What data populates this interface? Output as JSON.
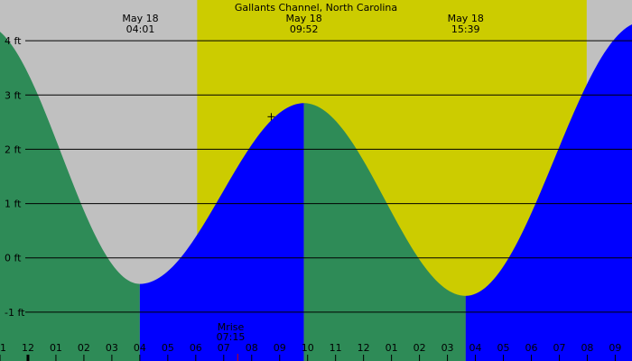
{
  "chart_data": {
    "type": "area",
    "title": "Gallants Channel, North Carolina",
    "colors": {
      "background": "#c0c0c0",
      "daylight": "#cccc00",
      "falling": "#2e8b57",
      "rising": "#0000ff",
      "gridline": "#000000",
      "moonrise_tick": "#cc0000"
    },
    "x_range_hours": [
      -1,
      21.6
    ],
    "ylim": [
      -1.9,
      4.75
    ],
    "yticks": [
      {
        "value": 4,
        "label": "4 ft"
      },
      {
        "value": 3,
        "label": "3 ft"
      },
      {
        "value": 2,
        "label": "2 ft"
      },
      {
        "value": 1,
        "label": "1 ft"
      },
      {
        "value": 0,
        "label": "0 ft"
      },
      {
        "value": -1,
        "label": "-1 ft"
      }
    ],
    "xticks": [
      {
        "hour": -1,
        "label": "11"
      },
      {
        "hour": 0,
        "label": "12"
      },
      {
        "hour": 1,
        "label": "01"
      },
      {
        "hour": 2,
        "label": "02"
      },
      {
        "hour": 3,
        "label": "03"
      },
      {
        "hour": 4,
        "label": "04"
      },
      {
        "hour": 5,
        "label": "05"
      },
      {
        "hour": 6,
        "label": "06"
      },
      {
        "hour": 7,
        "label": "07"
      },
      {
        "hour": 8,
        "label": "08"
      },
      {
        "hour": 9,
        "label": "09"
      },
      {
        "hour": 10,
        "label": "10"
      },
      {
        "hour": 11,
        "label": "11"
      },
      {
        "hour": 12,
        "label": "12"
      },
      {
        "hour": 13,
        "label": "01"
      },
      {
        "hour": 14,
        "label": "02"
      },
      {
        "hour": 15,
        "label": "03"
      },
      {
        "hour": 16,
        "label": "04"
      },
      {
        "hour": 17,
        "label": "05"
      },
      {
        "hour": 18,
        "label": "06"
      },
      {
        "hour": 19,
        "label": "07"
      },
      {
        "hour": 20,
        "label": "08"
      },
      {
        "hour": 21,
        "label": "09"
      }
    ],
    "daylight": {
      "start_hour": 6.05,
      "end_hour": 19.98
    },
    "tide_extremes": [
      {
        "hour": -1.6,
        "height": 4.3
      },
      {
        "hour": 4.0,
        "height": -0.48
      },
      {
        "hour": 9.87,
        "height": 2.85
      },
      {
        "hour": 15.65,
        "height": -0.7
      },
      {
        "hour": 22.0,
        "height": 4.35
      }
    ],
    "event_labels": [
      {
        "hour": 4.02,
        "date": "May 18",
        "time": "04:01"
      },
      {
        "hour": 9.87,
        "date": "May 18",
        "time": "09:52"
      },
      {
        "hour": 15.65,
        "date": "May 18",
        "time": "15:39"
      }
    ],
    "moonrise": {
      "hour": 7.25,
      "label": "Mrise",
      "time": "07:15"
    },
    "current_marker": {
      "hour": 8.7,
      "height": 2.6
    }
  }
}
